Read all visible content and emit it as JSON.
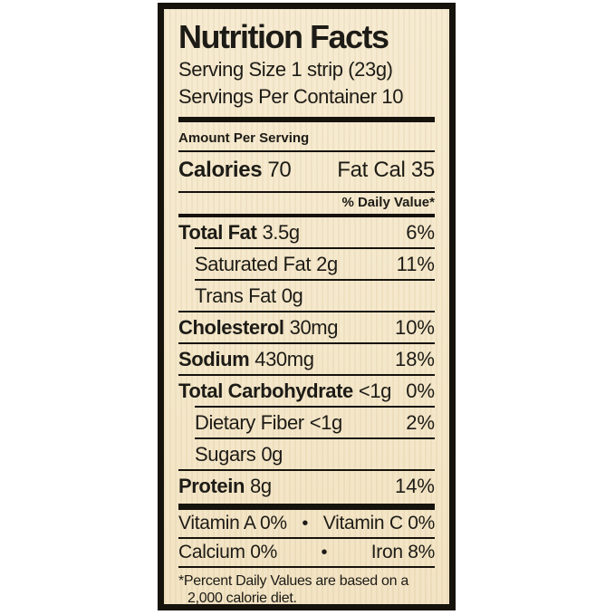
{
  "colors": {
    "page_background": "#ffffff",
    "label_background": "#f5e8cb",
    "border": "#16130d",
    "text": "#1d1b16"
  },
  "label": {
    "title": "Nutrition Facts",
    "serving_size": "Serving Size 1 strip (23g)",
    "servings_per_container": "Servings Per Container 10",
    "amount_per_serving": "Amount Per Serving",
    "calories": {
      "label": "Calories",
      "value": "70",
      "fat_calories": "Fat Cal 35"
    },
    "daily_value_header": "% Daily Value*",
    "rows": [
      {
        "name": "Total Fat",
        "amount": "3.5g",
        "dv": "6%"
      },
      {
        "name": "Saturated Fat",
        "amount": "2g",
        "dv": "11%"
      },
      {
        "name": "Trans Fat",
        "amount": "0g",
        "dv": ""
      },
      {
        "name": "Cholesterol",
        "amount": "30mg",
        "dv": "10%"
      },
      {
        "name": "Sodium",
        "amount": "430mg",
        "dv": "18%"
      },
      {
        "name": "Total Carbohydrate",
        "amount": "<1g",
        "dv": "0%"
      },
      {
        "name": "Dietary Fiber",
        "amount": "<1g",
        "dv": "2%"
      },
      {
        "name": "Sugars",
        "amount": "0g",
        "dv": ""
      },
      {
        "name": "Protein",
        "amount": "8g",
        "dv": "14%"
      }
    ],
    "micronutrients": [
      {
        "left": "Vitamin A 0%",
        "separator": "•",
        "right": "Vitamin C 0%"
      },
      {
        "left": "Calcium 0%",
        "separator": "•",
        "right": "Iron 8%"
      }
    ],
    "footnote_line1": "*Percent Daily Values are based on a",
    "footnote_line2": "2,000 calorie diet."
  }
}
